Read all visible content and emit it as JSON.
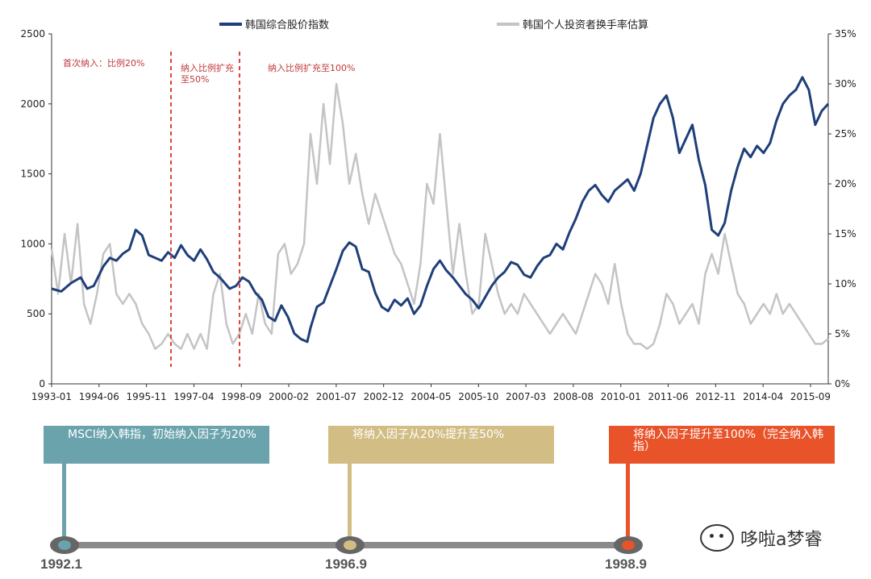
{
  "chart_data": {
    "type": "line",
    "title": "",
    "x_tick_labels": [
      "1993-01",
      "1994-06",
      "1995-11",
      "1997-04",
      "1998-09",
      "2000-02",
      "2001-07",
      "2002-12",
      "2004-05",
      "2005-10",
      "2007-03",
      "2008-08",
      "2010-01",
      "2011-06",
      "2012-11",
      "2014-04",
      "2015-09"
    ],
    "x_range": [
      1993.0,
      2017.0
    ],
    "y_left": {
      "ticks": [
        "0",
        "500",
        "1000",
        "1500",
        "2000",
        "2500"
      ],
      "range": [
        0,
        2500
      ]
    },
    "y_right": {
      "ticks": [
        "0%",
        "5%",
        "10%",
        "15%",
        "20%",
        "25%",
        "30%",
        "35%"
      ],
      "range": [
        0,
        35
      ]
    },
    "grid": false,
    "legend_position": "top",
    "series": [
      {
        "name": "韩国综合股价指数",
        "axis": "left",
        "color": "#1f3f7a",
        "points": [
          [
            1993.0,
            680
          ],
          [
            1993.3,
            660
          ],
          [
            1993.6,
            720
          ],
          [
            1993.9,
            760
          ],
          [
            1994.1,
            680
          ],
          [
            1994.3,
            700
          ],
          [
            1994.6,
            840
          ],
          [
            1994.8,
            900
          ],
          [
            1995.0,
            880
          ],
          [
            1995.2,
            930
          ],
          [
            1995.4,
            960
          ],
          [
            1995.6,
            1100
          ],
          [
            1995.8,
            1060
          ],
          [
            1996.0,
            920
          ],
          [
            1996.2,
            900
          ],
          [
            1996.4,
            880
          ],
          [
            1996.6,
            940
          ],
          [
            1996.8,
            900
          ],
          [
            1997.0,
            990
          ],
          [
            1997.2,
            920
          ],
          [
            1997.4,
            880
          ],
          [
            1997.6,
            960
          ],
          [
            1997.8,
            890
          ],
          [
            1998.0,
            800
          ],
          [
            1998.2,
            760
          ],
          [
            1998.5,
            680
          ],
          [
            1998.7,
            700
          ],
          [
            1998.9,
            760
          ],
          [
            1999.1,
            730
          ],
          [
            1999.3,
            650
          ],
          [
            1999.5,
            600
          ],
          [
            1999.7,
            480
          ],
          [
            1999.9,
            450
          ],
          [
            2000.1,
            560
          ],
          [
            2000.3,
            480
          ],
          [
            2000.5,
            360
          ],
          [
            2000.7,
            320
          ],
          [
            2000.9,
            300
          ],
          [
            2001.0,
            400
          ],
          [
            2001.2,
            550
          ],
          [
            2001.4,
            580
          ],
          [
            2001.6,
            700
          ],
          [
            2001.8,
            820
          ],
          [
            2002.0,
            950
          ],
          [
            2002.2,
            1010
          ],
          [
            2002.4,
            980
          ],
          [
            2002.6,
            820
          ],
          [
            2002.8,
            800
          ],
          [
            2003.0,
            650
          ],
          [
            2003.2,
            550
          ],
          [
            2003.4,
            520
          ],
          [
            2003.6,
            600
          ],
          [
            2003.8,
            560
          ],
          [
            2004.0,
            610
          ],
          [
            2004.2,
            500
          ],
          [
            2004.4,
            560
          ],
          [
            2004.6,
            700
          ],
          [
            2004.8,
            820
          ],
          [
            2005.0,
            880
          ],
          [
            2005.2,
            810
          ],
          [
            2005.4,
            760
          ],
          [
            2005.6,
            700
          ],
          [
            2005.8,
            640
          ],
          [
            2006.0,
            600
          ],
          [
            2006.2,
            540
          ],
          [
            2006.4,
            620
          ],
          [
            2006.6,
            700
          ],
          [
            2006.8,
            760
          ],
          [
            2007.0,
            800
          ],
          [
            2007.2,
            870
          ],
          [
            2007.4,
            850
          ],
          [
            2007.6,
            780
          ],
          [
            2007.8,
            760
          ],
          [
            2008.0,
            840
          ],
          [
            2008.2,
            900
          ],
          [
            2008.4,
            920
          ],
          [
            2008.6,
            1000
          ],
          [
            2008.8,
            960
          ],
          [
            2009.0,
            1080
          ],
          [
            2009.2,
            1180
          ],
          [
            2009.4,
            1300
          ],
          [
            2009.6,
            1380
          ],
          [
            2009.8,
            1420
          ],
          [
            2010.0,
            1350
          ],
          [
            2010.2,
            1300
          ],
          [
            2010.4,
            1380
          ],
          [
            2010.6,
            1420
          ],
          [
            2010.8,
            1460
          ],
          [
            2011.0,
            1380
          ],
          [
            2011.2,
            1500
          ],
          [
            2011.4,
            1700
          ],
          [
            2011.6,
            1900
          ],
          [
            2011.8,
            2000
          ],
          [
            2012.0,
            2060
          ],
          [
            2012.2,
            1900
          ],
          [
            2012.4,
            1650
          ],
          [
            2012.6,
            1750
          ],
          [
            2012.8,
            1850
          ],
          [
            2013.0,
            1600
          ],
          [
            2013.2,
            1420
          ],
          [
            2013.4,
            1100
          ],
          [
            2013.6,
            1060
          ],
          [
            2013.8,
            1150
          ],
          [
            2014.0,
            1380
          ],
          [
            2014.2,
            1550
          ],
          [
            2014.4,
            1680
          ],
          [
            2014.6,
            1620
          ],
          [
            2014.8,
            1700
          ],
          [
            2015.0,
            1650
          ],
          [
            2015.2,
            1720
          ],
          [
            2015.4,
            1880
          ],
          [
            2015.6,
            2000
          ],
          [
            2015.8,
            2060
          ],
          [
            2016.0,
            2100
          ],
          [
            2016.2,
            2190
          ],
          [
            2016.4,
            2100
          ],
          [
            2016.6,
            1850
          ],
          [
            2016.8,
            1950
          ],
          [
            2017.0,
            2000
          ]
        ]
      },
      {
        "name": "韩国个人投资者换手率估算",
        "axis": "right",
        "color": "#c4c4c6",
        "points": [
          [
            1993.0,
            13.5
          ],
          [
            1993.2,
            9
          ],
          [
            1993.4,
            15
          ],
          [
            1993.6,
            10
          ],
          [
            1993.8,
            16
          ],
          [
            1994.0,
            8
          ],
          [
            1994.2,
            6
          ],
          [
            1994.4,
            9
          ],
          [
            1994.6,
            13
          ],
          [
            1994.8,
            14
          ],
          [
            1995.0,
            9
          ],
          [
            1995.2,
            8
          ],
          [
            1995.4,
            9
          ],
          [
            1995.6,
            8
          ],
          [
            1995.8,
            6
          ],
          [
            1996.0,
            5
          ],
          [
            1996.2,
            3.5
          ],
          [
            1996.4,
            4
          ],
          [
            1996.6,
            5
          ],
          [
            1996.8,
            4
          ],
          [
            1997.0,
            3.5
          ],
          [
            1997.2,
            5
          ],
          [
            1997.4,
            3.5
          ],
          [
            1997.6,
            5
          ],
          [
            1997.8,
            3.5
          ],
          [
            1998.0,
            9
          ],
          [
            1998.2,
            11
          ],
          [
            1998.4,
            6
          ],
          [
            1998.6,
            4
          ],
          [
            1998.8,
            5
          ],
          [
            1999.0,
            7
          ],
          [
            1999.2,
            5
          ],
          [
            1999.4,
            9
          ],
          [
            1999.6,
            6
          ],
          [
            1999.8,
            5
          ],
          [
            2000.0,
            13
          ],
          [
            2000.2,
            14
          ],
          [
            2000.4,
            11
          ],
          [
            2000.6,
            12
          ],
          [
            2000.8,
            14
          ],
          [
            2001.0,
            25
          ],
          [
            2001.2,
            20
          ],
          [
            2001.4,
            28
          ],
          [
            2001.6,
            22
          ],
          [
            2001.8,
            30
          ],
          [
            2002.0,
            26
          ],
          [
            2002.2,
            20
          ],
          [
            2002.4,
            23
          ],
          [
            2002.6,
            19
          ],
          [
            2002.8,
            16
          ],
          [
            2003.0,
            19
          ],
          [
            2003.2,
            17
          ],
          [
            2003.4,
            15
          ],
          [
            2003.6,
            13
          ],
          [
            2003.8,
            12
          ],
          [
            2004.0,
            10
          ],
          [
            2004.2,
            8
          ],
          [
            2004.4,
            12
          ],
          [
            2004.6,
            20
          ],
          [
            2004.8,
            18
          ],
          [
            2005.0,
            25
          ],
          [
            2005.2,
            18
          ],
          [
            2005.4,
            11
          ],
          [
            2005.6,
            16
          ],
          [
            2005.8,
            11
          ],
          [
            2006.0,
            7
          ],
          [
            2006.2,
            8
          ],
          [
            2006.4,
            15
          ],
          [
            2006.6,
            12
          ],
          [
            2006.8,
            9
          ],
          [
            2007.0,
            7
          ],
          [
            2007.2,
            8
          ],
          [
            2007.4,
            7
          ],
          [
            2007.6,
            9
          ],
          [
            2007.8,
            8
          ],
          [
            2008.0,
            7
          ],
          [
            2008.2,
            6
          ],
          [
            2008.4,
            5
          ],
          [
            2008.6,
            6
          ],
          [
            2008.8,
            7
          ],
          [
            2009.0,
            6
          ],
          [
            2009.2,
            5
          ],
          [
            2009.4,
            7
          ],
          [
            2009.6,
            9
          ],
          [
            2009.8,
            11
          ],
          [
            2010.0,
            10
          ],
          [
            2010.2,
            8
          ],
          [
            2010.4,
            12
          ],
          [
            2010.6,
            8
          ],
          [
            2010.8,
            5
          ],
          [
            2011.0,
            4
          ],
          [
            2011.2,
            4
          ],
          [
            2011.4,
            3.5
          ],
          [
            2011.6,
            4
          ],
          [
            2011.8,
            6
          ],
          [
            2012.0,
            9
          ],
          [
            2012.2,
            8
          ],
          [
            2012.4,
            6
          ],
          [
            2012.6,
            7
          ],
          [
            2012.8,
            8
          ],
          [
            2013.0,
            6
          ],
          [
            2013.2,
            11
          ],
          [
            2013.4,
            13
          ],
          [
            2013.6,
            11
          ],
          [
            2013.8,
            15
          ],
          [
            2014.0,
            12
          ],
          [
            2014.2,
            9
          ],
          [
            2014.4,
            8
          ],
          [
            2014.6,
            6
          ],
          [
            2014.8,
            7
          ],
          [
            2015.0,
            8
          ],
          [
            2015.2,
            7
          ],
          [
            2015.4,
            9
          ],
          [
            2015.6,
            7
          ],
          [
            2015.8,
            8
          ],
          [
            2016.0,
            7
          ],
          [
            2016.2,
            6
          ],
          [
            2016.4,
            5
          ],
          [
            2016.6,
            4
          ],
          [
            2016.8,
            4
          ],
          [
            2017.0,
            4.5
          ]
        ]
      }
    ],
    "annotations": [
      {
        "text": "首次纳入：比例20%",
        "x": 1996.0
      },
      {
        "text_line1": "纳入比例扩充",
        "text_line2": "至50%",
        "x": 1998.7
      },
      {
        "text": "纳入比例扩充至100%",
        "x": 2001.0
      }
    ]
  },
  "timeline": {
    "events": [
      {
        "text": "MSCI纳入韩指，初始纳入因子为20%",
        "date": "1992.1",
        "color": "#6aa3ac"
      },
      {
        "text": "将纳入因子从20%提升至50%",
        "date": "1996.9",
        "color": "#d2bd85"
      },
      {
        "text": "将纳入因子提升至100%（完全纳入韩指）",
        "date": "1998.9",
        "color": "#e8532a"
      }
    ]
  },
  "watermark": {
    "text": "哆啦a梦睿"
  }
}
